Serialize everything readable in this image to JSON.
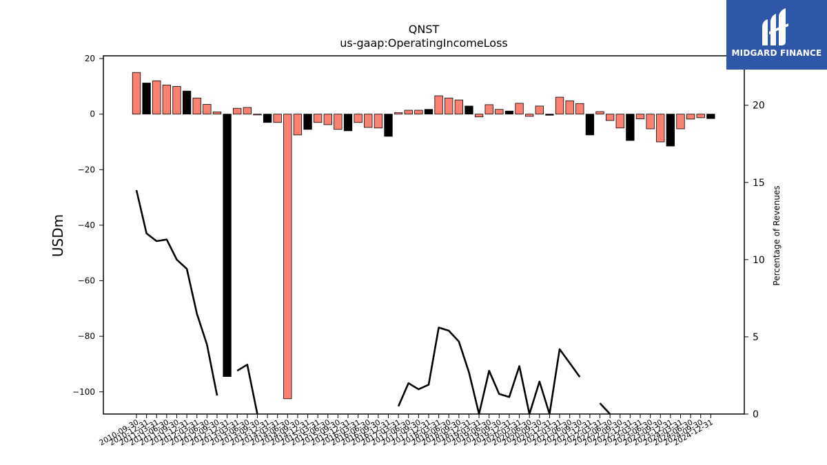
{
  "chart_data": {
    "type": "bar",
    "title": "QNST",
    "subtitle": "us-gaap:OperatingIncomeLoss",
    "ylabel": "USDm",
    "y2label": "Percentage of Revenues",
    "ylim": [
      -108,
      21
    ],
    "y2lim": [
      0,
      23.2
    ],
    "yticks": [
      20,
      0,
      -20,
      -40,
      -60,
      -80,
      -100
    ],
    "y2ticks": [
      20,
      15,
      10,
      5,
      0
    ],
    "grid": false,
    "colors": {
      "positive": "#fa8072",
      "negative": "#000000",
      "line": "#000000"
    },
    "categories": [
      "2010-09-30",
      "2010-12-31",
      "2011-03-31",
      "2011-06-30",
      "2011-09-30",
      "2011-12-31",
      "2012-03-31",
      "2012-06-30",
      "2012-09-30",
      "2012-12-31",
      "2013-03-31",
      "2013-06-30",
      "2013-09-30",
      "2013-12-31",
      "2014-03-31",
      "2014-06-30",
      "2014-09-30",
      "2014-12-31",
      "2015-03-31",
      "2015-06-30",
      "2015-09-30",
      "2015-12-31",
      "2016-03-31",
      "2016-06-30",
      "2016-09-30",
      "2016-12-31",
      "2017-03-31",
      "2017-06-30",
      "2017-09-30",
      "2017-12-31",
      "2018-03-31",
      "2018-06-30",
      "2018-09-30",
      "2018-12-31",
      "2019-03-31",
      "2019-06-30",
      "2019-09-30",
      "2019-12-31",
      "2020-03-31",
      "2020-06-30",
      "2020-09-30",
      "2020-12-31",
      "2021-03-31",
      "2021-06-30",
      "2021-09-30",
      "2021-12-31",
      "2022-03-31",
      "2022-06-30",
      "2022-09-30",
      "2022-12-31",
      "2023-03-31",
      "2023-06-30",
      "2023-09-30",
      "2023-12-31",
      "2024-03-31",
      "2024-06-30",
      "2024-09-30",
      "2024-12-31"
    ],
    "values": [
      15,
      11.2,
      12,
      10.5,
      10,
      8.3,
      5.8,
      3.5,
      0.8,
      -94.5,
      2.1,
      2.4,
      -0.3,
      -3,
      -3,
      -102.5,
      -7.5,
      -5.5,
      -3,
      -3.8,
      -5.5,
      -6,
      -3,
      -4.8,
      -5,
      -8,
      0.5,
      1.4,
      1.4,
      1.7,
      6.6,
      5.8,
      5.1,
      2.9,
      -1,
      3.4,
      1.7,
      1.1,
      3.9,
      -0.8,
      2.9,
      -0.4,
      6.1,
      4.8,
      3.8,
      -7.5,
      0.9,
      -2.3,
      -5,
      -9.5,
      -1.7,
      -5.3,
      -10,
      -11.5,
      -5.3,
      -1.8,
      -1.3,
      -1.6
    ],
    "bar_colors": [
      "positive",
      "negative",
      "positive",
      "positive",
      "positive",
      "negative",
      "positive",
      "positive",
      "positive",
      "negative",
      "positive",
      "positive",
      "positive",
      "negative",
      "positive",
      "positive",
      "positive",
      "negative",
      "positive",
      "positive",
      "positive",
      "negative",
      "positive",
      "positive",
      "positive",
      "negative",
      "positive",
      "positive",
      "positive",
      "negative",
      "positive",
      "positive",
      "positive",
      "negative",
      "positive",
      "positive",
      "positive",
      "negative",
      "positive",
      "positive",
      "positive",
      "negative",
      "positive",
      "positive",
      "positive",
      "negative",
      "positive",
      "positive",
      "positive",
      "negative",
      "positive",
      "positive",
      "positive",
      "negative",
      "positive",
      "positive",
      "positive",
      "negative"
    ],
    "line": {
      "values": [
        14.5,
        11.7,
        11.2,
        11.3,
        10.0,
        9.4,
        6.5,
        4.5,
        1.2,
        null,
        2.8,
        3.2,
        0,
        null,
        null,
        null,
        null,
        null,
        null,
        null,
        null,
        null,
        null,
        null,
        null,
        null,
        0.5,
        2.0,
        1.6,
        1.9,
        5.6,
        5.4,
        4.7,
        2.7,
        0,
        2.8,
        1.3,
        1.1,
        3.1,
        0,
        2.1,
        0,
        4.2,
        3.3,
        2.4,
        null,
        0.7,
        0,
        null,
        null,
        null,
        null,
        null,
        null,
        null,
        null,
        null,
        null
      ]
    }
  },
  "logo": {
    "text": "MIDGARD FINANCE"
  }
}
